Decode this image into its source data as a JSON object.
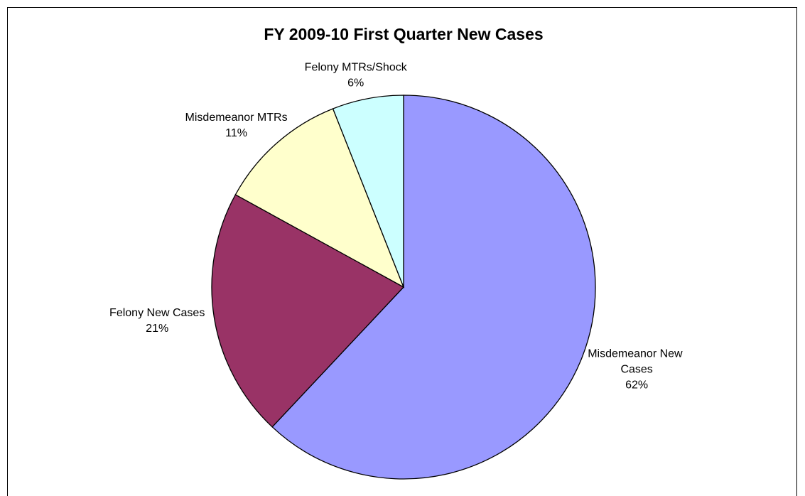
{
  "chart_data": {
    "type": "pie",
    "title": "FY 2009-10 First Quarter New Cases",
    "categories": [
      "Misdemeanor New Cases",
      "Felony New Cases",
      "Misdemeanor MTRs",
      "Felony MTRs/Shock"
    ],
    "values": [
      62,
      21,
      11,
      6
    ],
    "value_labels": [
      "62%",
      "21%",
      "11%",
      "6%"
    ],
    "colors": [
      "#9999ff",
      "#993366",
      "#ffffcc",
      "#ccffff"
    ]
  }
}
